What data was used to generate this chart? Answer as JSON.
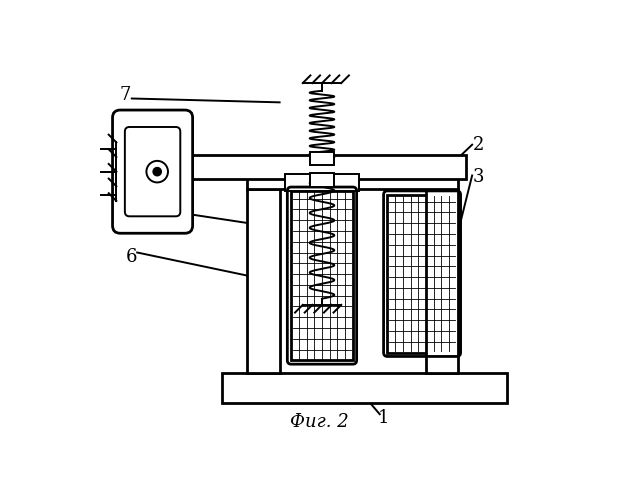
{
  "title": "Фиг. 2",
  "bg_color": "#ffffff",
  "line_color": "#000000",
  "figsize": [
    6.23,
    5.0
  ],
  "dpi": 100
}
